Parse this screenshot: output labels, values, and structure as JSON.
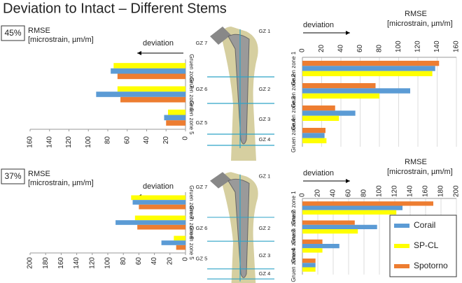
{
  "title": "Deviation to Intact – Different Stems",
  "femur_labels": [
    "GZ 1",
    "GZ 2",
    "GZ 3",
    "GZ 4",
    "GZ 5",
    "GZ 6",
    "GZ 7"
  ],
  "chart_data": [
    {
      "type": "hbar",
      "panel_label": "45%",
      "xlabel": [
        "RMSE",
        "[microstrain, µm/m]"
      ],
      "annotation": "deviation",
      "x_reversed": true,
      "grid": false,
      "categories": [
        "Gruen zone 7",
        "Gruen zone 6",
        "Gruen zone 5"
      ],
      "xlim": [
        0,
        160
      ],
      "xticks": [
        0,
        20,
        40,
        60,
        80,
        100,
        120,
        140,
        160
      ],
      "series": [
        {
          "name": "Corail",
          "color": "#5b9bd5",
          "values": [
            77,
            92,
            22
          ]
        },
        {
          "name": "SP-CL",
          "color": "#ffff00",
          "values": [
            74,
            70,
            18
          ]
        },
        {
          "name": "Spotorno",
          "color": "#ed7d31",
          "values": [
            70,
            67,
            20
          ]
        }
      ]
    },
    {
      "type": "hbar",
      "xlabel": [
        "RMSE",
        "[microstrain, µm/m]"
      ],
      "annotation": "deviation",
      "x_reversed": false,
      "grid": true,
      "categories": [
        "Gruen zone 1",
        "Gruen zone 2",
        "Gruen zone 3",
        "Gruen zone 4"
      ],
      "xlim": [
        0,
        160
      ],
      "xticks": [
        0,
        20,
        40,
        60,
        80,
        100,
        120,
        140,
        160
      ],
      "series": [
        {
          "name": "Corail",
          "color": "#5b9bd5",
          "values": [
            138,
            112,
            55,
            23
          ]
        },
        {
          "name": "SP-CL",
          "color": "#ffff00",
          "values": [
            135,
            80,
            38,
            25
          ]
        },
        {
          "name": "Spotorno",
          "color": "#ed7d31",
          "values": [
            142,
            76,
            34,
            24
          ]
        }
      ]
    },
    {
      "type": "hbar",
      "panel_label": "37%",
      "xlabel": [
        "RMSE",
        "[microstrain, µm/m]"
      ],
      "annotation": "deviation",
      "x_reversed": true,
      "grid": false,
      "categories": [
        "Gruen zone 7",
        "Gruen zone 6",
        "Gruen zone 5"
      ],
      "xlim": [
        0,
        200
      ],
      "xticks": [
        0,
        20,
        40,
        60,
        80,
        100,
        120,
        140,
        160,
        180,
        200
      ],
      "series": [
        {
          "name": "Corail",
          "color": "#5b9bd5",
          "values": [
            68,
            90,
            31
          ]
        },
        {
          "name": "SP-CL",
          "color": "#ffff00",
          "values": [
            70,
            65,
            15
          ]
        },
        {
          "name": "Spotorno",
          "color": "#ed7d31",
          "values": [
            60,
            62,
            12
          ]
        }
      ]
    },
    {
      "type": "hbar",
      "xlabel": [
        "RMSE",
        "[microstrain, µm/m]"
      ],
      "annotation": "deviation",
      "x_reversed": false,
      "grid": true,
      "legend": "bottom-right",
      "categories": [
        "Gruen zone 1",
        "Gruen zone 2",
        "Gruen zone 3",
        "Gruen zone 4"
      ],
      "xlim": [
        0,
        200
      ],
      "xticks": [
        0,
        20,
        40,
        60,
        80,
        100,
        120,
        140,
        160,
        180,
        200
      ],
      "series": [
        {
          "name": "Corail",
          "color": "#5b9bd5",
          "values": [
            130,
            97,
            48,
            17
          ]
        },
        {
          "name": "SP-CL",
          "color": "#ffff00",
          "values": [
            122,
            72,
            26,
            17
          ]
        },
        {
          "name": "Spotorno",
          "color": "#ed7d31",
          "values": [
            170,
            68,
            26,
            17
          ]
        }
      ]
    }
  ]
}
